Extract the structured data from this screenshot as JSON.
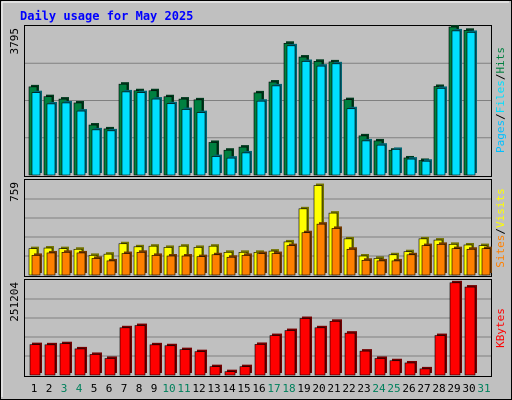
{
  "chart_data": {
    "type": "bar",
    "title": "Daily usage for May 2025",
    "categories": [
      "1",
      "2",
      "3",
      "4",
      "5",
      "6",
      "7",
      "8",
      "9",
      "10",
      "11",
      "12",
      "13",
      "14",
      "15",
      "16",
      "17",
      "18",
      "19",
      "20",
      "21",
      "22",
      "23",
      "24",
      "25",
      "26",
      "27",
      "28",
      "29",
      "30",
      "31"
    ],
    "weekend_days": [
      "3",
      "4",
      "10",
      "11",
      "17",
      "18",
      "24",
      "25",
      "31"
    ],
    "panels": [
      {
        "id": "hits-files-pages",
        "ymax_label": "3795",
        "ylim": [
          0,
          3795
        ],
        "label_parts": [
          "Pages",
          "/",
          "Files",
          "/",
          "Hits"
        ],
        "series": [
          {
            "name": "Hits",
            "color": "#008040",
            "values": [
              2275,
              2022,
              1960,
              1860,
              1290,
              1190,
              2345,
              2175,
              2175,
              2020,
              1960,
              1940,
              840,
              640,
              720,
              2120,
              2400,
              3400,
              3045,
              2935,
              2920,
              1945,
              1010,
              880,
              640,
              440,
              375,
              2285,
              3820,
              3735,
              0
            ]
          },
          {
            "name": "Files",
            "color": "#00e0ff",
            "values": [
              2125,
              1835,
              1860,
              1650,
              1165,
              1140,
              2145,
              2125,
              1960,
              1840,
              1690,
              1610,
              475,
              435,
              570,
              1905,
              2300,
              3335,
              2930,
              2810,
              2870,
              1710,
              880,
              770,
              660,
              410,
              355,
              2235,
              3720,
              3680,
              0
            ]
          },
          {
            "name": "Pages",
            "color": "#00c0ff",
            "values": [
              0,
              0,
              0,
              0,
              0,
              0,
              0,
              0,
              0,
              0,
              0,
              0,
              0,
              0,
              0,
              0,
              0,
              0,
              0,
              0,
              0,
              0,
              0,
              0,
              0,
              0,
              0,
              0,
              0,
              0,
              0
            ]
          }
        ]
      },
      {
        "id": "visits-sites",
        "ymax_label": "759",
        "ylim": [
          0,
          759
        ],
        "label_parts": [
          "Sites",
          "/",
          "Visits"
        ],
        "series": [
          {
            "name": "Visits",
            "color": "#ffff00",
            "values": [
              215,
              220,
              215,
              210,
              160,
              170,
              255,
              230,
              235,
              225,
              235,
              225,
              235,
              185,
              185,
              185,
              195,
              270,
              540,
              730,
              505,
              295,
              155,
              135,
              165,
              190,
              295,
              285,
              250,
              245,
              240
            ]
          },
          {
            "name": "Sites",
            "color": "#ff8000",
            "values": [
              160,
              180,
              185,
              180,
              135,
              115,
              175,
              185,
              160,
              155,
              155,
              150,
              165,
              145,
              160,
              175,
              175,
              240,
              345,
              415,
              380,
              210,
              120,
              115,
              115,
              165,
              240,
              250,
              215,
              210,
              215
            ]
          }
        ]
      },
      {
        "id": "kbytes",
        "ymax_label": "251204",
        "ylim": [
          0,
          251204
        ],
        "label_parts": [
          "KBytes"
        ],
        "series": [
          {
            "name": "KBytes",
            "color": "#ff0000",
            "values": [
              82000,
              81500,
              84500,
              70500,
              55500,
              44500,
              127500,
              133500,
              81500,
              79000,
              68500,
              63000,
              22500,
              9000,
              22500,
              82500,
              106500,
              120000,
              152500,
              127500,
              145000,
              113000,
              64500,
              44500,
              38500,
              32500,
              16500,
              106500,
              249000,
              237500,
              0
            ]
          }
        ]
      }
    ]
  },
  "colors": {
    "background": "#c0c0c0",
    "plot_background": "#c0c0c0",
    "gridline": "#808080",
    "title": "#0000ff",
    "weekday_label": "#000000",
    "weekend_label": "#00805c",
    "slash": "#000000"
  }
}
